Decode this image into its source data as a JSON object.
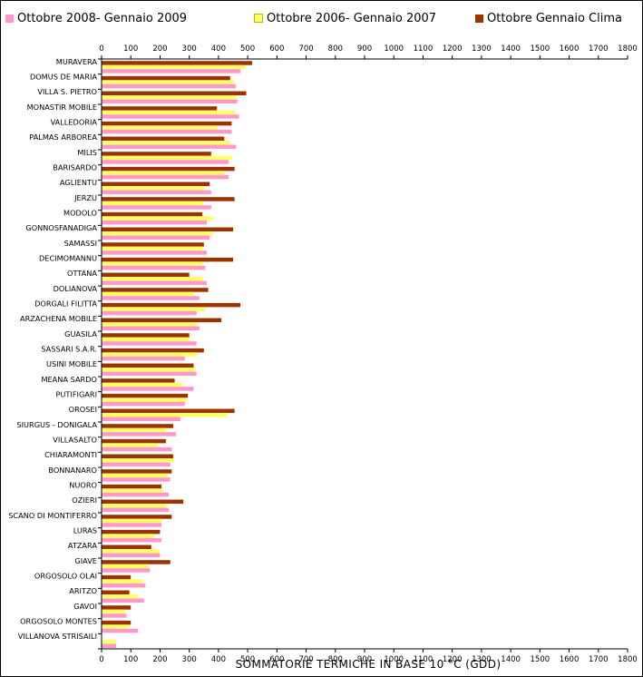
{
  "chart_data": {
    "type": "bar",
    "orientation": "horizontal",
    "title": "",
    "xlabel": "SOMMATORIE TERMICHE IN BASE 10 °C (GDD)",
    "ylabel": "",
    "xlim": [
      0,
      1800
    ],
    "x_ticks": [
      "0",
      "100",
      "200",
      "300",
      "400",
      "500",
      "600",
      "700",
      "800",
      "900",
      "1000",
      "1100",
      "1200",
      "1300",
      "1400",
      "1500",
      "1600",
      "1700",
      "1800"
    ],
    "grid": false,
    "legend_position": "top",
    "categories": [
      "MURAVERA",
      "DOMUS DE MARIA",
      "VILLA S. PIETRO",
      "MONASTIR MOBILE",
      "VALLEDORIA",
      "PALMAS ARBOREA",
      "MILIS",
      "BARISARDO",
      "AGLIENTU",
      "JERZU",
      "MODOLO",
      "GONNOSFANADIGA",
      "SAMASSI",
      "DECIMOMANNU",
      "OTTANA",
      "DOLIANOVA",
      "DORGALI FILITTA",
      "ARZACHENA MOBILE",
      "GUASILA",
      "SASSARI S.A.R.",
      "USINI MOBILE",
      "MEANA SARDO",
      "PUTIFIGARI",
      "OROSEI",
      "SIURGUS - DONIGALA",
      "VILLASALTO",
      "CHIARAMONTI",
      "BONNANARO",
      "NUORO",
      "OZIERI",
      "SCANO DI MONTIFERRO",
      "LURAS",
      "ATZARA",
      "GIAVE",
      "ORGOSOLO OLAI",
      "ARITZO",
      "GAVOI",
      "ORGOSOLO MONTES",
      "VILLANOVA STRISAILI"
    ],
    "series": [
      {
        "name": "Ottobre Gennaio Clima",
        "color": "#993300",
        "values": [
          515,
          440,
          495,
          395,
          445,
          420,
          375,
          455,
          370,
          455,
          345,
          450,
          350,
          450,
          300,
          365,
          475,
          410,
          300,
          350,
          315,
          250,
          295,
          455,
          245,
          220,
          245,
          240,
          205,
          280,
          240,
          200,
          170,
          235,
          100,
          95,
          100,
          100,
          0
        ]
      },
      {
        "name": "Ottobre 2006- Gennaio 2007",
        "color": "#ffff66",
        "values": [
          490,
          450,
          460,
          455,
          395,
          440,
          445,
          420,
          350,
          345,
          380,
          380,
          345,
          345,
          345,
          315,
          355,
          325,
          300,
          325,
          320,
          275,
          290,
          430,
          220,
          190,
          245,
          225,
          210,
          220,
          205,
          180,
          195,
          160,
          140,
          125,
          80,
          95,
          50
        ]
      },
      {
        "name": "Ottobre 2008- Gennaio 2009",
        "color": "#ff99cc",
        "values": [
          475,
          460,
          465,
          470,
          445,
          460,
          435,
          435,
          375,
          375,
          360,
          370,
          360,
          355,
          360,
          335,
          325,
          335,
          325,
          285,
          325,
          315,
          285,
          270,
          255,
          240,
          235,
          235,
          230,
          230,
          205,
          205,
          200,
          165,
          150,
          145,
          85,
          125,
          50
        ]
      }
    ]
  }
}
